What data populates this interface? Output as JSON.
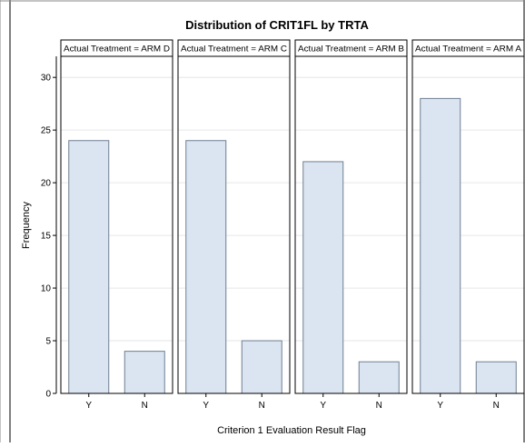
{
  "chart_data": {
    "type": "bar",
    "title": "Distribution of CRIT1FL by TRTA",
    "xlabel": "Criterion 1 Evaluation Result Flag",
    "ylabel": "Frequency",
    "ylim": [
      0,
      32
    ],
    "yticks": [
      0,
      5,
      10,
      15,
      20,
      25,
      30
    ],
    "grid": true,
    "categories": [
      "Y",
      "N"
    ],
    "panels": [
      {
        "label": "Actual Treatment = ARM D",
        "values": [
          24,
          4
        ]
      },
      {
        "label": "Actual Treatment = ARM C",
        "values": [
          24,
          5
        ]
      },
      {
        "label": "Actual Treatment = ARM B",
        "values": [
          22,
          3
        ]
      },
      {
        "label": "Actual Treatment = ARM A",
        "values": [
          28,
          3
        ]
      }
    ],
    "colors": {
      "bar_fill": "#dbe5f1",
      "bar_stroke": "#6f7f91",
      "grid": "#e6e6e6"
    }
  }
}
